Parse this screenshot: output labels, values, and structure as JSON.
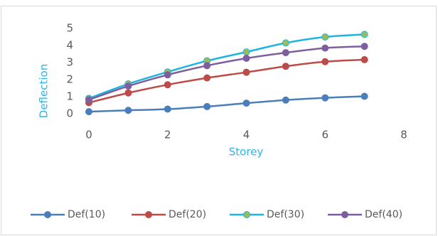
{
  "chart_data": {
    "type": "line",
    "smooth": true,
    "legend": "bottom",
    "grid": false,
    "x_label": "Storey",
    "y_label": "Deflection",
    "x": [
      0,
      1,
      2,
      3,
      4,
      5,
      6,
      7
    ],
    "xlim": [
      0,
      8
    ],
    "xticks": [
      0,
      2,
      4,
      6,
      8
    ],
    "ylim": [
      0,
      5
    ],
    "yticks": [
      0,
      1,
      2,
      3,
      4,
      5
    ],
    "series": [
      {
        "name": "Def(10)",
        "color": "#4a7ebb",
        "marker_fill": "#4a7ebb",
        "values": [
          0.12,
          0.2,
          0.27,
          0.42,
          0.62,
          0.8,
          0.93,
          1.02
        ]
      },
      {
        "name": "Def(20)",
        "color": "#be4b48",
        "marker_fill": "#be4b48",
        "values": [
          0.65,
          1.22,
          1.7,
          2.1,
          2.43,
          2.78,
          3.05,
          3.17
        ]
      },
      {
        "name": "Def(30)",
        "color": "#1fb4e0",
        "marker_fill": "#9bbb59",
        "values": [
          0.9,
          1.75,
          2.45,
          3.1,
          3.62,
          4.15,
          4.5,
          4.65
        ]
      },
      {
        "name": "Def(40)",
        "color": "#7d5fa0",
        "marker_fill": "#7d5fa0",
        "values": [
          0.82,
          1.62,
          2.28,
          2.82,
          3.25,
          3.58,
          3.85,
          3.95
        ]
      }
    ]
  }
}
